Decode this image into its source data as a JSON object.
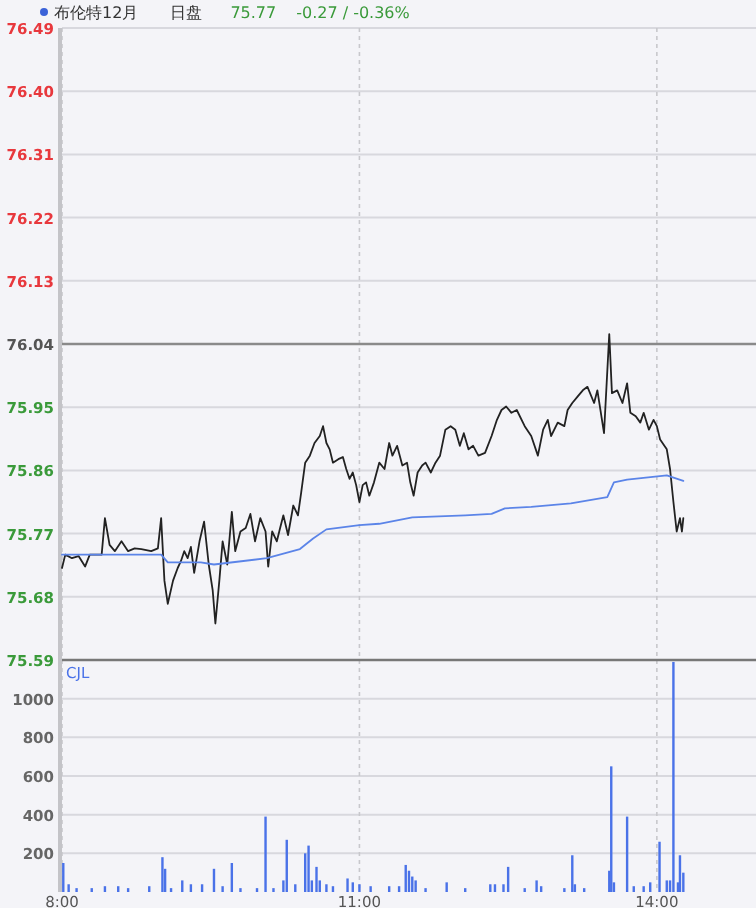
{
  "chart_data": [
    {
      "type": "line",
      "title": "布伦特12月",
      "annotations": [
        "日盘",
        "75.77",
        "-0.27 / -0.36%"
      ],
      "xlim": [
        8,
        15
      ],
      "xticks": [
        {
          "value": 8,
          "label": null
        },
        {
          "value": 11,
          "label": null
        },
        {
          "value": 14,
          "label": null
        }
      ],
      "ylim": [
        75.59,
        76.49
      ],
      "yticks": [
        75.59,
        75.68,
        75.77,
        75.86,
        75.95,
        76.04,
        76.13,
        76.22,
        76.31,
        {
          "value": 76.4,
          "label": "76.40"
        },
        76.49
      ],
      "tick_labels": "y",
      "grid": true,
      "ref_lines": [
        {
          "axis": "y",
          "value": 76.04,
          "color": "#8a8a8a"
        }
      ],
      "series": [
        {
          "color": "#222222",
          "x": [
            8.0,
            8.033,
            8.1,
            8.167,
            8.233,
            8.28,
            8.4,
            8.433,
            8.48,
            8.533,
            8.6,
            8.667,
            8.733,
            8.8,
            8.9,
            8.967,
            9.0,
            9.033,
            9.067,
            9.12,
            9.167,
            9.2,
            9.233,
            9.267,
            9.3,
            9.333,
            9.387,
            9.433,
            9.48,
            9.52,
            9.547,
            9.587,
            9.62,
            9.667,
            9.713,
            9.747,
            9.8,
            9.853,
            9.9,
            9.947,
            10.0,
            10.053,
            10.08,
            10.12,
            10.167,
            10.2,
            10.233,
            10.28,
            10.333,
            10.38,
            10.413,
            10.453,
            10.5,
            10.547,
            10.6,
            10.633,
            10.667,
            10.7,
            10.733,
            10.787,
            10.833,
            10.867,
            10.9,
            10.933,
            10.967,
            11.0,
            11.033,
            11.067,
            11.1,
            11.147,
            11.2,
            11.253,
            11.3,
            11.333,
            11.38,
            11.433,
            11.48,
            11.513,
            11.547,
            11.587,
            11.633,
            11.667,
            11.72,
            11.767,
            11.813,
            11.867,
            11.92,
            11.967,
            12.013,
            12.053,
            12.1,
            12.147,
            12.2,
            12.267,
            12.333,
            12.387,
            12.433,
            12.48,
            12.533,
            12.587,
            12.667,
            12.733,
            12.8,
            12.853,
            12.9,
            12.933,
            13.0,
            13.067,
            13.1,
            13.147,
            13.2,
            13.253,
            13.3,
            13.367,
            13.4,
            13.467,
            13.52,
            13.547,
            13.6,
            13.653,
            13.7,
            13.733,
            13.787,
            13.833,
            13.867,
            13.92,
            13.967,
            14.0,
            14.033,
            14.1,
            14.133,
            14.167,
            14.2,
            14.233,
            14.253,
            14.267
          ],
          "values": [
            75.721,
            75.74,
            75.735,
            75.738,
            75.723,
            75.74,
            75.74,
            75.792,
            75.754,
            75.745,
            75.759,
            75.745,
            75.749,
            75.748,
            75.745,
            75.749,
            75.792,
            75.703,
            75.67,
            75.703,
            75.721,
            75.731,
            75.745,
            75.735,
            75.751,
            75.714,
            75.759,
            75.787,
            75.726,
            75.689,
            75.642,
            75.703,
            75.759,
            75.726,
            75.801,
            75.745,
            75.773,
            75.778,
            75.798,
            75.759,
            75.792,
            75.773,
            75.723,
            75.773,
            75.759,
            75.778,
            75.796,
            75.768,
            75.81,
            75.796,
            75.829,
            75.871,
            75.881,
            75.899,
            75.909,
            75.923,
            75.899,
            75.89,
            75.871,
            75.876,
            75.879,
            75.862,
            75.848,
            75.857,
            75.839,
            75.815,
            75.839,
            75.843,
            75.824,
            75.843,
            75.871,
            75.862,
            75.899,
            75.881,
            75.895,
            75.867,
            75.871,
            75.843,
            75.824,
            75.857,
            75.867,
            75.871,
            75.857,
            75.871,
            75.881,
            75.918,
            75.923,
            75.918,
            75.895,
            75.913,
            75.89,
            75.895,
            75.881,
            75.885,
            75.909,
            75.932,
            75.946,
            75.951,
            75.942,
            75.946,
            75.923,
            75.909,
            75.881,
            75.918,
            75.932,
            75.909,
            75.928,
            75.923,
            75.946,
            75.956,
            75.965,
            75.974,
            75.979,
            75.956,
            75.974,
            75.913,
            76.054,
            75.97,
            75.974,
            75.956,
            75.984,
            75.942,
            75.937,
            75.928,
            75.942,
            75.918,
            75.932,
            75.923,
            75.904,
            75.89,
            75.862,
            75.815,
            75.773,
            75.792,
            75.773,
            75.792
          ]
        },
        {
          "color": "#5b84e8",
          "x": [
            8.0,
            8.4,
            9.0,
            9.067,
            9.4,
            9.533,
            10.067,
            10.4,
            10.533,
            10.667,
            11.0,
            11.2,
            11.533,
            12.067,
            12.333,
            12.467,
            12.733,
            13.133,
            13.5,
            13.567,
            13.7,
            14.1,
            14.267
          ],
          "values": [
            75.74,
            75.74,
            75.74,
            75.729,
            75.729,
            75.726,
            75.735,
            75.748,
            75.763,
            75.776,
            75.782,
            75.784,
            75.793,
            75.796,
            75.798,
            75.806,
            75.808,
            75.813,
            75.822,
            75.843,
            75.847,
            75.853,
            75.845
          ]
        }
      ]
    },
    {
      "type": "bar",
      "title": "CJL",
      "xlim": [
        8,
        15
      ],
      "xticks": [
        {
          "value": 8,
          "label": "8:00"
        },
        {
          "value": 11,
          "label": "11:00"
        },
        {
          "value": 14,
          "label": "14:00"
        }
      ],
      "ylim": [
        0,
        1200
      ],
      "yticks": [
        200,
        400,
        600,
        800,
        1000
      ],
      "grid": true,
      "series": [
        {
          "color": "#4a72e8",
          "x": [
            8.013,
            8.067,
            8.147,
            8.3,
            8.433,
            8.567,
            8.667,
            8.88,
            9.013,
            9.04,
            9.1,
            9.213,
            9.3,
            9.413,
            9.533,
            9.62,
            9.713,
            9.8,
            9.967,
            10.053,
            10.133,
            10.233,
            10.267,
            10.353,
            10.453,
            10.487,
            10.52,
            10.567,
            10.6,
            10.667,
            10.733,
            10.88,
            10.933,
            11.0,
            11.113,
            11.3,
            11.4,
            11.467,
            11.5,
            11.533,
            11.567,
            11.667,
            11.88,
            12.067,
            12.32,
            12.367,
            12.453,
            12.5,
            12.667,
            12.787,
            12.833,
            13.067,
            13.147,
            13.173,
            13.267,
            13.52,
            13.54,
            13.567,
            13.7,
            13.767,
            13.867,
            13.933,
            14.027,
            14.1,
            14.133,
            14.167,
            14.213,
            14.233,
            14.267
          ],
          "values": [
            150,
            40,
            20,
            20,
            30,
            30,
            20,
            30,
            180,
            120,
            20,
            60,
            40,
            40,
            120,
            30,
            150,
            20,
            20,
            390,
            20,
            60,
            270,
            40,
            200,
            240,
            60,
            130,
            60,
            40,
            30,
            70,
            50,
            40,
            30,
            30,
            30,
            140,
            110,
            80,
            60,
            20,
            50,
            20,
            40,
            40,
            40,
            130,
            20,
            60,
            30,
            20,
            190,
            40,
            20,
            110,
            650,
            50,
            390,
            30,
            30,
            50,
            260,
            60,
            60,
            1190,
            50,
            190,
            100
          ]
        }
      ]
    }
  ]
}
